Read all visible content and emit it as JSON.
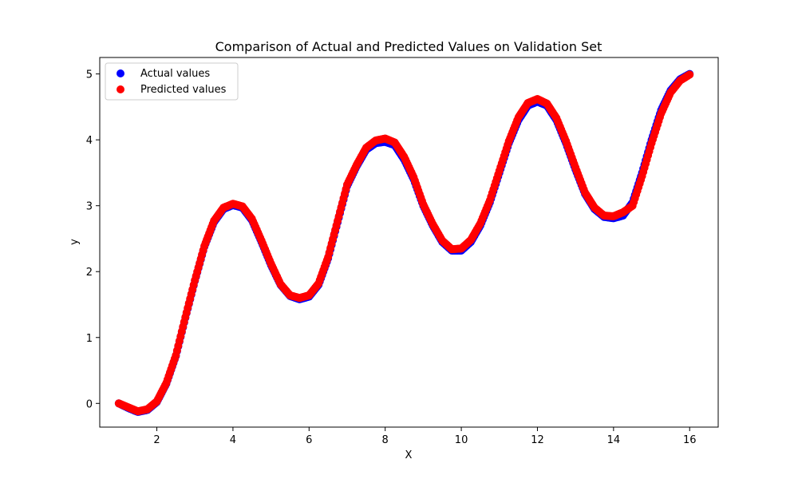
{
  "chart_data": {
    "type": "scatter",
    "title": "Comparison of Actual and Predicted Values on Validation Set",
    "xlabel": "X",
    "ylabel": "y",
    "xlim": [
      0.5,
      16.75
    ],
    "ylim": [
      -0.36,
      5.25
    ],
    "xticks": [
      2,
      4,
      6,
      8,
      10,
      12,
      14,
      16
    ],
    "yticks": [
      0,
      1,
      2,
      3,
      4,
      5
    ],
    "legend_position": "upper-left",
    "grid": false,
    "series": [
      {
        "name": "Actual values",
        "color": "#0000ff",
        "x": [
          1.0,
          1.25,
          1.5,
          1.75,
          2.0,
          2.25,
          2.5,
          2.75,
          3.0,
          3.25,
          3.5,
          3.75,
          4.0,
          4.25,
          4.5,
          4.75,
          5.0,
          5.25,
          5.5,
          5.75,
          6.0,
          6.25,
          6.5,
          6.75,
          7.0,
          7.25,
          7.5,
          7.75,
          8.0,
          8.25,
          8.5,
          8.75,
          9.0,
          9.25,
          9.5,
          9.75,
          10.0,
          10.25,
          10.5,
          10.75,
          11.0,
          11.25,
          11.5,
          11.75,
          12.0,
          12.25,
          12.5,
          12.75,
          13.0,
          13.25,
          13.5,
          13.75,
          14.0,
          14.25,
          14.5,
          14.75,
          15.0,
          15.25,
          15.5,
          15.75,
          16.0
        ],
        "y": [
          0.0,
          -0.07,
          -0.13,
          -0.1,
          0.02,
          0.3,
          0.72,
          1.3,
          1.86,
          2.38,
          2.75,
          2.95,
          3.01,
          2.97,
          2.78,
          2.45,
          2.1,
          1.8,
          1.63,
          1.58,
          1.62,
          1.8,
          2.2,
          2.75,
          3.3,
          3.6,
          3.85,
          3.95,
          3.97,
          3.92,
          3.7,
          3.4,
          3.0,
          2.7,
          2.45,
          2.32,
          2.32,
          2.45,
          2.7,
          3.05,
          3.5,
          3.95,
          4.3,
          4.52,
          4.58,
          4.52,
          4.3,
          3.95,
          3.55,
          3.18,
          2.95,
          2.83,
          2.81,
          2.85,
          3.05,
          3.5,
          4.0,
          4.45,
          4.75,
          4.92,
          5.0
        ]
      },
      {
        "name": "Predicted values",
        "color": "#ff0000",
        "x": [
          1.0,
          1.25,
          1.5,
          1.75,
          2.0,
          2.25,
          2.5,
          2.75,
          3.0,
          3.25,
          3.5,
          3.75,
          4.0,
          4.25,
          4.5,
          4.75,
          5.0,
          5.25,
          5.5,
          5.75,
          6.0,
          6.25,
          6.5,
          6.75,
          7.0,
          7.25,
          7.5,
          7.75,
          8.0,
          8.25,
          8.5,
          8.75,
          9.0,
          9.25,
          9.5,
          9.75,
          10.0,
          10.25,
          10.5,
          10.75,
          11.0,
          11.25,
          11.5,
          11.75,
          12.0,
          12.25,
          12.5,
          12.75,
          13.0,
          13.25,
          13.5,
          13.75,
          14.0,
          14.25,
          14.5,
          14.75,
          15.0,
          15.25,
          15.5,
          15.75,
          16.0
        ],
        "y": [
          0.0,
          -0.06,
          -0.12,
          -0.09,
          0.03,
          0.31,
          0.73,
          1.31,
          1.87,
          2.39,
          2.77,
          2.97,
          3.03,
          2.99,
          2.8,
          2.47,
          2.12,
          1.81,
          1.64,
          1.6,
          1.64,
          1.82,
          2.22,
          2.77,
          3.32,
          3.62,
          3.88,
          3.99,
          4.02,
          3.96,
          3.74,
          3.43,
          3.02,
          2.72,
          2.47,
          2.34,
          2.35,
          2.48,
          2.73,
          3.08,
          3.53,
          3.98,
          4.34,
          4.56,
          4.62,
          4.55,
          4.33,
          3.98,
          3.58,
          3.2,
          2.97,
          2.85,
          2.84,
          2.9,
          3.0,
          3.45,
          3.95,
          4.4,
          4.72,
          4.9,
          4.99
        ]
      }
    ]
  }
}
